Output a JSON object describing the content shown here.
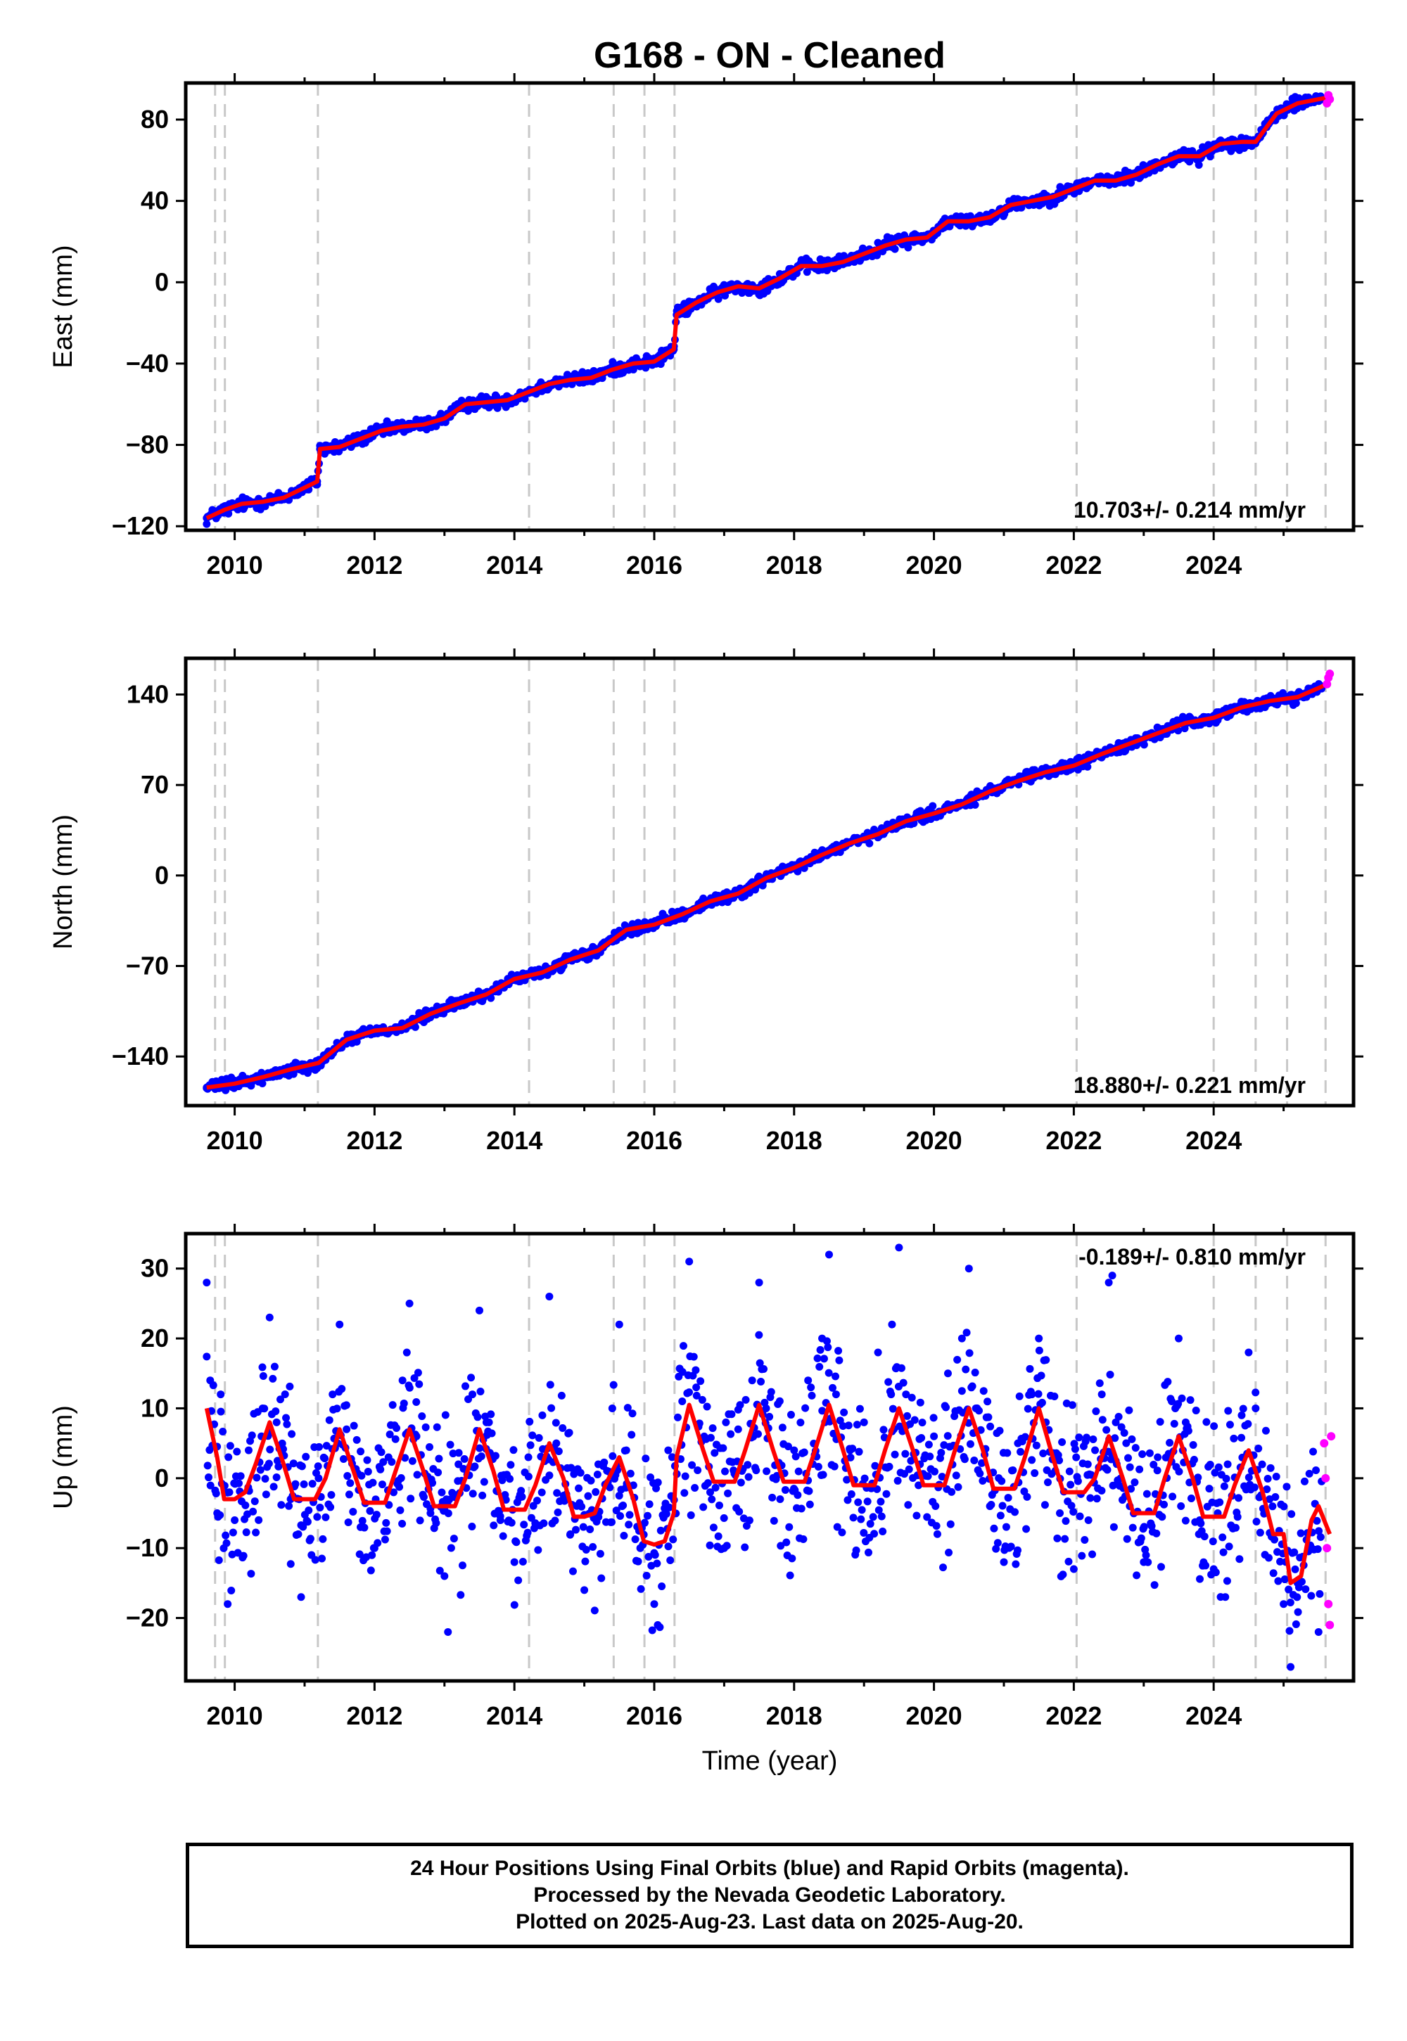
{
  "title": "G168  - ON - Cleaned",
  "xlabel": "Time (year)",
  "colors": {
    "final_orbits": "#0000ff",
    "rapid_orbits": "#ff00ff",
    "model": "#ff0000",
    "event_lines": "#c8c8c8"
  },
  "x_ticks": [
    "2010",
    "2012",
    "2014",
    "2016",
    "2018",
    "2020",
    "2022",
    "2024"
  ],
  "event_epochs": [
    2009.72,
    2009.86,
    2011.19,
    2014.21,
    2015.42,
    2015.86,
    2016.29,
    2022.04,
    2024.0,
    2024.6,
    2025.05,
    2025.6
  ],
  "chart_data": [
    {
      "type": "scatter",
      "component": "east",
      "ylabel": "East (mm)",
      "rate_label": "10.703+/- 0.214 mm/yr",
      "xlim": [
        2009.3,
        2026.0
      ],
      "ylim": [
        -122,
        98
      ],
      "yticks": [
        -120,
        -80,
        -40,
        0,
        40,
        80
      ],
      "ytick_labels": [
        "−120",
        "−80",
        "−40",
        "0",
        "40",
        "80"
      ],
      "rate_label_position": "bottom-right",
      "grid": false,
      "series": [
        {
          "name": "Final Orbits",
          "color": "#0000ff",
          "x": [
            2009.6,
            2009.85,
            2010.1,
            2010.4,
            2010.7,
            2011.0,
            2011.18,
            2011.22,
            2011.5,
            2011.8,
            2012.1,
            2012.4,
            2012.7,
            2013.0,
            2013.3,
            2013.6,
            2013.9,
            2014.2,
            2014.5,
            2014.8,
            2015.1,
            2015.4,
            2015.7,
            2016.0,
            2016.28,
            2016.32,
            2016.6,
            2016.9,
            2017.2,
            2017.5,
            2017.8,
            2018.1,
            2018.4,
            2018.7,
            2019.0,
            2019.3,
            2019.6,
            2019.9,
            2020.2,
            2020.5,
            2020.8,
            2021.1,
            2021.4,
            2021.7,
            2022.0,
            2022.3,
            2022.6,
            2022.9,
            2023.2,
            2023.5,
            2023.8,
            2024.1,
            2024.4,
            2024.6,
            2024.9,
            2025.2,
            2025.5
          ],
          "y": [
            -116,
            -112,
            -109,
            -108,
            -106,
            -101,
            -98,
            -82,
            -81,
            -77,
            -73,
            -71,
            -70,
            -67,
            -60,
            -59,
            -58,
            -54,
            -50,
            -48,
            -47,
            -43,
            -40,
            -39,
            -33,
            -16,
            -10,
            -5,
            -2,
            -3,
            2,
            8,
            8,
            10,
            14,
            18,
            21,
            22,
            30,
            30,
            32,
            38,
            40,
            42,
            46,
            50,
            50,
            53,
            58,
            62,
            62,
            68,
            69,
            69,
            83,
            88,
            90
          ]
        },
        {
          "name": "Rapid Orbits",
          "color": "#ff00ff",
          "x": [
            2025.62,
            2025.64,
            2025.66
          ],
          "y": [
            88,
            92,
            90
          ]
        }
      ],
      "model": {
        "x": [
          2009.6,
          2009.85,
          2010.1,
          2010.4,
          2010.7,
          2011.0,
          2011.18,
          2011.22,
          2011.5,
          2011.8,
          2012.1,
          2012.4,
          2012.7,
          2013.0,
          2013.3,
          2013.6,
          2013.9,
          2014.2,
          2014.5,
          2014.8,
          2015.1,
          2015.4,
          2015.7,
          2016.0,
          2016.28,
          2016.32,
          2016.6,
          2016.9,
          2017.2,
          2017.5,
          2017.8,
          2018.1,
          2018.4,
          2018.7,
          2019.0,
          2019.3,
          2019.6,
          2019.9,
          2020.2,
          2020.5,
          2020.8,
          2021.1,
          2021.4,
          2021.7,
          2022.0,
          2022.3,
          2022.6,
          2022.9,
          2023.2,
          2023.5,
          2023.8,
          2024.1,
          2024.4,
          2024.6,
          2024.9,
          2025.2,
          2025.5,
          2025.66
        ],
        "y": [
          -116,
          -112,
          -109,
          -108,
          -106,
          -101,
          -98,
          -82,
          -81,
          -77,
          -73,
          -71,
          -70,
          -67,
          -60,
          -59,
          -58,
          -54,
          -50,
          -48,
          -47,
          -43,
          -40,
          -39,
          -33,
          -16,
          -10,
          -5,
          -2,
          -3,
          2,
          8,
          8,
          10,
          14,
          18,
          21,
          22,
          30,
          30,
          32,
          38,
          40,
          42,
          46,
          50,
          50,
          53,
          58,
          62,
          62,
          68,
          69,
          69,
          83,
          88,
          90,
          91
        ]
      }
    },
    {
      "type": "scatter",
      "component": "north",
      "ylabel": "North (mm)",
      "rate_label": "18.880+/- 0.221 mm/yr",
      "xlim": [
        2009.3,
        2026.0
      ],
      "ylim": [
        -178,
        168
      ],
      "yticks": [
        -140,
        -70,
        0,
        70,
        140
      ],
      "ytick_labels": [
        "−140",
        "−70",
        "0",
        "70",
        "140"
      ],
      "rate_label_position": "bottom-right",
      "grid": false,
      "series": [
        {
          "name": "Final Orbits",
          "color": "#0000ff",
          "x": [
            2009.6,
            2010.0,
            2010.4,
            2010.8,
            2011.2,
            2011.6,
            2012.0,
            2012.4,
            2012.8,
            2013.2,
            2013.6,
            2014.0,
            2014.4,
            2014.8,
            2015.2,
            2015.6,
            2016.0,
            2016.4,
            2016.8,
            2017.2,
            2017.6,
            2018.0,
            2018.4,
            2018.8,
            2019.2,
            2019.6,
            2020.0,
            2020.4,
            2020.8,
            2021.2,
            2021.6,
            2022.0,
            2022.4,
            2022.8,
            2023.2,
            2023.6,
            2024.0,
            2024.4,
            2024.8,
            2025.2,
            2025.5
          ],
          "y": [
            -164,
            -161,
            -156,
            -150,
            -145,
            -127,
            -120,
            -118,
            -107,
            -99,
            -92,
            -80,
            -75,
            -65,
            -58,
            -42,
            -38,
            -30,
            -20,
            -14,
            -2,
            6,
            16,
            25,
            32,
            42,
            48,
            55,
            65,
            73,
            80,
            85,
            94,
            102,
            110,
            118,
            122,
            130,
            135,
            138,
            145
          ]
        },
        {
          "name": "Rapid Orbits",
          "color": "#ff00ff",
          "x": [
            2025.62,
            2025.64,
            2025.66
          ],
          "y": [
            148,
            153,
            156
          ]
        }
      ],
      "model": {
        "x": [
          2009.6,
          2010.0,
          2010.4,
          2010.8,
          2011.2,
          2011.6,
          2012.0,
          2012.4,
          2012.8,
          2013.2,
          2013.6,
          2014.0,
          2014.4,
          2014.8,
          2015.2,
          2015.6,
          2016.0,
          2016.4,
          2016.8,
          2017.2,
          2017.6,
          2018.0,
          2018.4,
          2018.8,
          2019.2,
          2019.6,
          2020.0,
          2020.4,
          2020.8,
          2021.2,
          2021.6,
          2022.0,
          2022.4,
          2022.8,
          2023.2,
          2023.6,
          2024.0,
          2024.4,
          2024.8,
          2025.2,
          2025.5,
          2025.66
        ],
        "y": [
          -164,
          -161,
          -156,
          -150,
          -145,
          -127,
          -120,
          -118,
          -107,
          -99,
          -92,
          -80,
          -75,
          -65,
          -58,
          -42,
          -38,
          -30,
          -20,
          -14,
          -2,
          6,
          16,
          25,
          32,
          42,
          48,
          55,
          65,
          73,
          80,
          85,
          94,
          102,
          110,
          118,
          122,
          130,
          135,
          138,
          145,
          149
        ]
      }
    },
    {
      "type": "scatter",
      "component": "up",
      "ylabel": "Up (mm)",
      "rate_label": "-0.189+/- 0.810 mm/yr",
      "xlim": [
        2009.3,
        2026.0
      ],
      "ylim": [
        -29,
        35
      ],
      "yticks": [
        -20,
        -10,
        0,
        10,
        20,
        30
      ],
      "ytick_labels": [
        "−20",
        "−10",
        "0",
        "10",
        "20",
        "30"
      ],
      "rate_label_position": "top-right",
      "grid": false,
      "series": [
        {
          "name": "Final Orbits",
          "color": "#0000ff",
          "x": [
            2009.6,
            2009.65,
            2009.75,
            2009.8,
            2009.9,
            2010.0,
            2010.2,
            2010.4,
            2010.5,
            2010.6,
            2010.8,
            2010.95,
            2011.2,
            2011.4,
            2011.5,
            2011.6,
            2011.8,
            2012.0,
            2012.2,
            2012.4,
            2012.5,
            2012.6,
            2012.8,
            2013.0,
            2013.05,
            2013.2,
            2013.4,
            2013.5,
            2013.6,
            2013.8,
            2014.0,
            2014.2,
            2014.4,
            2014.5,
            2014.6,
            2014.8,
            2015.0,
            2015.2,
            2015.4,
            2015.5,
            2015.6,
            2015.8,
            2016.0,
            2016.05,
            2016.2,
            2016.4,
            2016.5,
            2016.6,
            2016.8,
            2017.0,
            2017.2,
            2017.4,
            2017.5,
            2017.6,
            2017.8,
            2018.0,
            2018.2,
            2018.4,
            2018.5,
            2018.6,
            2018.8,
            2019.0,
            2019.2,
            2019.4,
            2019.5,
            2019.6,
            2019.8,
            2020.0,
            2020.2,
            2020.4,
            2020.5,
            2020.6,
            2020.8,
            2021.0,
            2021.2,
            2021.4,
            2021.5,
            2021.6,
            2021.8,
            2022.0,
            2022.2,
            2022.4,
            2022.5,
            2022.55,
            2022.6,
            2022.8,
            2023.0,
            2023.2,
            2023.4,
            2023.5,
            2023.6,
            2023.8,
            2024.0,
            2024.2,
            2024.4,
            2024.5,
            2024.6,
            2024.8,
            2025.0,
            2025.1,
            2025.2,
            2025.4,
            2025.5
          ],
          "y": [
            28,
            14,
            -5,
            12,
            -18,
            -6,
            4,
            10,
            23,
            8,
            -3,
            -17,
            0,
            12,
            22,
            7,
            -7,
            -10,
            3,
            14,
            25,
            6,
            -5,
            -14,
            -22,
            2,
            12,
            24,
            8,
            -6,
            -12,
            3,
            9,
            26,
            5,
            -8,
            -16,
            2,
            10,
            22,
            4,
            -10,
            -18,
            -21,
            4,
            11,
            31,
            13,
            -2,
            -10,
            7,
            14,
            28,
            10,
            -3,
            4,
            14,
            20,
            32,
            12,
            4,
            8,
            18,
            22,
            33,
            12,
            2,
            6,
            15,
            20,
            30,
            10,
            -4,
            -12,
            5,
            12,
            20,
            8,
            -5,
            -13,
            2,
            12,
            28,
            29,
            8,
            -4,
            -12,
            3,
            11,
            20,
            8,
            -6,
            -13,
            2,
            9,
            18,
            10,
            -3,
            -18,
            -27,
            -15,
            -10,
            -22
          ]
        },
        {
          "name": "Rapid Orbits",
          "color": "#ff00ff",
          "x": [
            2025.58,
            2025.6,
            2025.62,
            2025.64,
            2025.66,
            2025.68
          ],
          "y": [
            5,
            0,
            -10,
            -18,
            -21,
            6
          ]
        }
      ],
      "model": {
        "x": [
          2009.6,
          2009.75,
          2009.85,
          2010.0,
          2010.15,
          2010.3,
          2010.5,
          2010.7,
          2010.85,
          2011.0,
          2011.15,
          2011.3,
          2011.5,
          2011.7,
          2011.85,
          2012.0,
          2012.15,
          2012.3,
          2012.5,
          2012.7,
          2012.85,
          2013.0,
          2013.15,
          2013.3,
          2013.5,
          2013.7,
          2013.85,
          2014.0,
          2014.15,
          2014.3,
          2014.5,
          2014.7,
          2014.85,
          2015.0,
          2015.15,
          2015.3,
          2015.5,
          2015.7,
          2015.85,
          2016.0,
          2016.15,
          2016.28,
          2016.32,
          2016.5,
          2016.7,
          2016.85,
          2017.0,
          2017.15,
          2017.3,
          2017.5,
          2017.7,
          2017.85,
          2018.0,
          2018.15,
          2018.3,
          2018.5,
          2018.7,
          2018.85,
          2019.0,
          2019.15,
          2019.3,
          2019.5,
          2019.7,
          2019.85,
          2020.0,
          2020.15,
          2020.3,
          2020.5,
          2020.7,
          2020.85,
          2021.0,
          2021.15,
          2021.3,
          2021.5,
          2021.7,
          2021.85,
          2022.0,
          2022.15,
          2022.3,
          2022.5,
          2022.7,
          2022.85,
          2023.0,
          2023.15,
          2023.3,
          2023.5,
          2023.7,
          2023.85,
          2024.0,
          2024.15,
          2024.3,
          2024.5,
          2024.7,
          2024.85,
          2025.0,
          2025.1,
          2025.25,
          2025.4,
          2025.5,
          2025.66
        ],
        "y": [
          10,
          3,
          -3,
          -3,
          -2,
          2,
          8,
          2,
          -3,
          -3,
          -3,
          0,
          7,
          1,
          -3.5,
          -3.5,
          -3.5,
          1,
          7,
          1,
          -4,
          -4,
          -4,
          0,
          7,
          1,
          -4.5,
          -4.5,
          -4.5,
          -1,
          5,
          0,
          -5.5,
          -5.5,
          -5,
          -1,
          3,
          -3,
          -9,
          -9.5,
          -9,
          -5,
          3,
          10.5,
          4,
          -0.5,
          -0.5,
          -0.5,
          4,
          10.5,
          4,
          -0.5,
          -0.5,
          -0.5,
          4,
          10.5,
          4,
          -1,
          -1,
          -1,
          4,
          10,
          4,
          -1,
          -1,
          -1,
          4,
          10,
          4,
          -1.5,
          -1.5,
          -1.5,
          3,
          10,
          3,
          -2,
          -2,
          -2,
          0,
          6,
          0,
          -5,
          -5,
          -5,
          0,
          6,
          0,
          -5.5,
          -5.5,
          -5.5,
          -1,
          4,
          -2,
          -8,
          -8,
          -15,
          -14,
          -6,
          -4,
          -8
        ]
      }
    }
  ],
  "footer": {
    "line1": "24 Hour Positions Using Final Orbits (blue) and Rapid Orbits (magenta).",
    "line2": "Processed by the Nevada Geodetic Laboratory.",
    "line3": "Plotted on 2025-Aug-23. Last data on 2025-Aug-20."
  }
}
